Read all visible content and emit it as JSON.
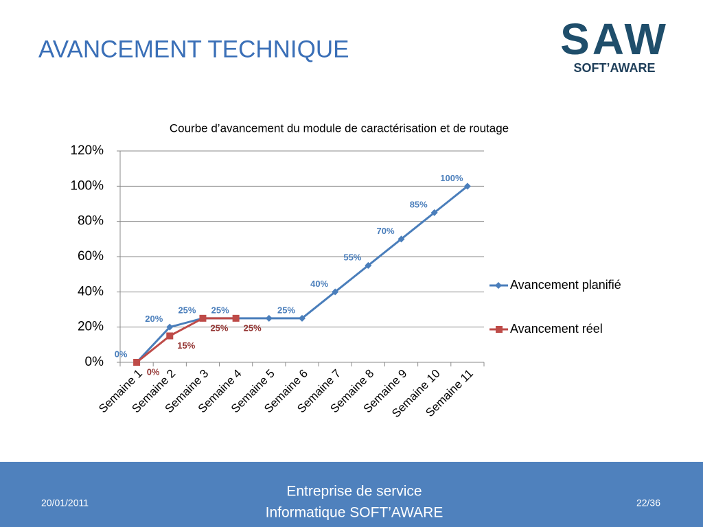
{
  "title": "AVANCEMENT TECHNIQUE",
  "logo": {
    "mark": "SAW",
    "name": "SOFT’AWARE"
  },
  "chart_data": {
    "type": "line",
    "title": "Courbe d’avancement du module de caractérisation et de routage",
    "categories": [
      "Semaine 1",
      "Semaine 2",
      "Semaine 3",
      "Semaine 4",
      "Semaine 5",
      "Semaine 6",
      "Semaine 7",
      "Semaine 8",
      "Semaine 9",
      "Semaine 10",
      "Semaine 11"
    ],
    "series": [
      {
        "name": "Avancement planifié",
        "color": "#4a7ebb",
        "marker": "diamond",
        "label_color": "#4a7ebb",
        "values": [
          0,
          20,
          25,
          25,
          25,
          25,
          40,
          55,
          70,
          85,
          100
        ],
        "value_labels": [
          "0%",
          "20%",
          "25%",
          "25%",
          null,
          "25%",
          "40%",
          "55%",
          "70%",
          "85%",
          "100%"
        ]
      },
      {
        "name": "Avancement réel",
        "color": "#be4b48",
        "marker": "square",
        "label_color": "#953735",
        "values": [
          0,
          15,
          25,
          25,
          null,
          null,
          null,
          null,
          null,
          null,
          null
        ],
        "value_labels": [
          "0%",
          "15%",
          "25%",
          "25%",
          null,
          null,
          null,
          null,
          null,
          null,
          null
        ]
      }
    ],
    "ylim": [
      0,
      120
    ],
    "yticks": [
      {
        "value": 0,
        "label": "0%"
      },
      {
        "value": 20,
        "label": "20%"
      },
      {
        "value": 40,
        "label": "40%"
      },
      {
        "value": 60,
        "label": "60%"
      },
      {
        "value": 80,
        "label": "80%"
      },
      {
        "value": 100,
        "label": "100%"
      },
      {
        "value": 120,
        "label": "120%"
      }
    ],
    "grid": true,
    "legend": "right"
  },
  "footer": {
    "date": "20/01/2011",
    "company": [
      "Entreprise de service",
      "Informatique SOFT’AWARE"
    ],
    "page": "22/36"
  }
}
